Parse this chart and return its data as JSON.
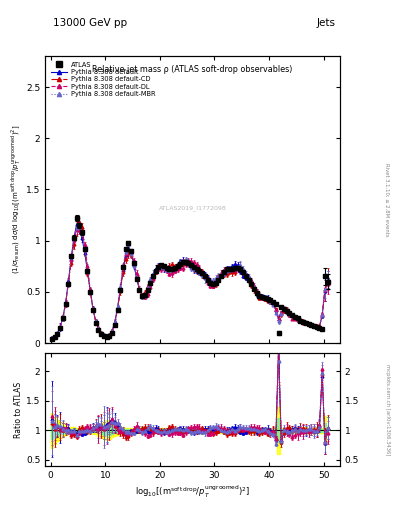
{
  "title_top": "13000 GeV pp",
  "title_top_right": "Jets",
  "plot_title": "Relative jet mass ρ (ATLAS soft-drop observables)",
  "ylabel_main": "(1/σ_{resum}) dσ/d log_{10}[(m^{soft drop}/p_T^{ungroomed})^2]",
  "ylabel_ratio": "Ratio to ATLAS",
  "xlabel": "log_{10}[(m^{soft drop}/p_T^{ungroomed})^2]",
  "right_label_top": "Rivet 3.1.10; ≥ 2.8M events",
  "right_label_bottom": "mcplots.cern.ch [arXiv:1306.3436]",
  "watermark": "ATLAS2019_I1772098",
  "ylim_main": [
    0.0,
    2.8
  ],
  "ylim_ratio": [
    0.4,
    2.3
  ],
  "xlim": [
    -1.0,
    53.0
  ],
  "x_ticks": [
    0,
    10,
    20,
    30,
    40,
    50
  ],
  "x_ticklabels": [
    "0",
    "10",
    "20",
    "30",
    "40",
    "50"
  ],
  "atlas_x": [
    0.25,
    0.75,
    1.25,
    1.75,
    2.25,
    2.75,
    3.25,
    3.75,
    4.25,
    4.75,
    5.25,
    5.75,
    6.25,
    6.75,
    7.25,
    7.75,
    8.25,
    8.75,
    9.25,
    9.75,
    10.25,
    10.75,
    11.25,
    11.75,
    12.25,
    12.75,
    13.25,
    13.75,
    14.25,
    14.75,
    15.25,
    15.75,
    16.25,
    16.75,
    17.25,
    17.75,
    18.25,
    18.75,
    19.25,
    19.75,
    20.25,
    20.75,
    21.25,
    21.75,
    22.25,
    22.75,
    23.25,
    23.75,
    24.25,
    24.75,
    25.25,
    25.75,
    26.25,
    26.75,
    27.25,
    27.75,
    28.25,
    28.75,
    29.25,
    29.75,
    30.25,
    30.75,
    31.25,
    31.75,
    32.25,
    32.75,
    33.25,
    33.75,
    34.25,
    34.75,
    35.25,
    35.75,
    36.25,
    36.75,
    37.25,
    37.75,
    38.25,
    38.75,
    39.25,
    39.75,
    40.25,
    40.75,
    41.25,
    41.75,
    42.25,
    42.75,
    43.25,
    43.75,
    44.25,
    44.75,
    45.25,
    45.75,
    46.25,
    46.75,
    47.25,
    47.75,
    48.25,
    48.75,
    49.25,
    49.75,
    50.25,
    50.75
  ],
  "atlas_y": [
    0.04,
    0.06,
    0.09,
    0.15,
    0.24,
    0.38,
    0.58,
    0.85,
    1.03,
    1.22,
    1.15,
    1.08,
    0.92,
    0.7,
    0.5,
    0.32,
    0.2,
    0.13,
    0.09,
    0.07,
    0.06,
    0.07,
    0.1,
    0.18,
    0.32,
    0.52,
    0.74,
    0.92,
    0.98,
    0.9,
    0.78,
    0.63,
    0.52,
    0.46,
    0.47,
    0.52,
    0.59,
    0.65,
    0.7,
    0.74,
    0.76,
    0.75,
    0.73,
    0.72,
    0.72,
    0.73,
    0.75,
    0.77,
    0.79,
    0.79,
    0.78,
    0.76,
    0.74,
    0.72,
    0.7,
    0.68,
    0.65,
    0.62,
    0.59,
    0.58,
    0.59,
    0.62,
    0.65,
    0.69,
    0.72,
    0.72,
    0.72,
    0.73,
    0.73,
    0.72,
    0.69,
    0.65,
    0.62,
    0.58,
    0.53,
    0.49,
    0.46,
    0.45,
    0.44,
    0.43,
    0.42,
    0.4,
    0.38,
    0.1,
    0.35,
    0.33,
    0.31,
    0.29,
    0.27,
    0.25,
    0.24,
    0.22,
    0.21,
    0.2,
    0.19,
    0.18,
    0.17,
    0.16,
    0.15,
    0.14,
    0.65,
    0.6
  ],
  "atlas_yerr": [
    0.006,
    0.007,
    0.008,
    0.01,
    0.012,
    0.015,
    0.018,
    0.022,
    0.025,
    0.028,
    0.025,
    0.022,
    0.019,
    0.015,
    0.012,
    0.009,
    0.007,
    0.006,
    0.005,
    0.005,
    0.005,
    0.005,
    0.006,
    0.009,
    0.012,
    0.015,
    0.018,
    0.02,
    0.02,
    0.019,
    0.017,
    0.015,
    0.013,
    0.012,
    0.012,
    0.013,
    0.014,
    0.015,
    0.015,
    0.016,
    0.016,
    0.016,
    0.016,
    0.016,
    0.016,
    0.016,
    0.016,
    0.017,
    0.017,
    0.017,
    0.017,
    0.017,
    0.016,
    0.016,
    0.015,
    0.015,
    0.014,
    0.014,
    0.013,
    0.013,
    0.013,
    0.013,
    0.014,
    0.014,
    0.015,
    0.015,
    0.015,
    0.015,
    0.015,
    0.015,
    0.014,
    0.014,
    0.013,
    0.013,
    0.012,
    0.011,
    0.01,
    0.01,
    0.009,
    0.009,
    0.009,
    0.009,
    0.008,
    0.02,
    0.008,
    0.007,
    0.007,
    0.006,
    0.006,
    0.006,
    0.005,
    0.005,
    0.005,
    0.005,
    0.004,
    0.004,
    0.004,
    0.004,
    0.003,
    0.003,
    0.08,
    0.07
  ],
  "colors": {
    "atlas": "#000000",
    "default": "#0000cc",
    "cd": "#cc0000",
    "dl": "#cc0066",
    "mbr": "#6666cc"
  },
  "mc_noise_seeds": [
    1,
    2,
    3,
    4
  ],
  "mc_noise_levels": [
    0.04,
    0.06,
    0.06,
    0.05
  ]
}
